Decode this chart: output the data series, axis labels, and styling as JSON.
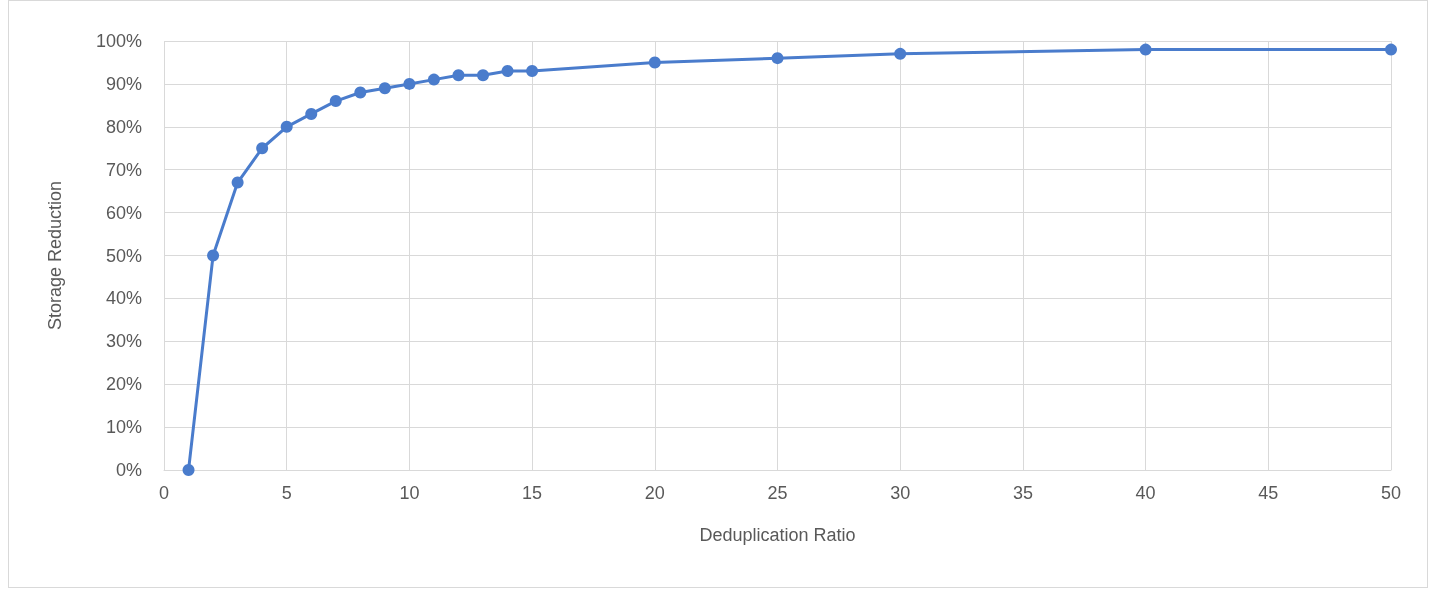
{
  "chart_data": {
    "type": "line",
    "xlabel": "Deduplication Ratio",
    "ylabel": "Storage Reduction",
    "x": [
      1,
      2,
      3,
      4,
      5,
      6,
      7,
      8,
      9,
      10,
      11,
      12,
      13,
      14,
      15,
      20,
      25,
      30,
      40,
      50
    ],
    "series": [
      {
        "color": "#4a7ccc",
        "values": [
          0,
          50,
          67,
          75,
          80,
          83,
          86,
          88,
          89,
          90,
          91,
          92,
          92,
          93,
          93,
          95,
          96,
          97,
          98,
          98
        ]
      }
    ],
    "xlim": [
      0,
      50
    ],
    "xticks": [
      0,
      5,
      10,
      15,
      20,
      25,
      30,
      35,
      40,
      45,
      50
    ],
    "ylim": [
      0,
      100
    ],
    "yticks": [
      {
        "value": 0,
        "label": "0%"
      },
      {
        "value": 10,
        "label": "10%"
      },
      {
        "value": 20,
        "label": "20%"
      },
      {
        "value": 30,
        "label": "30%"
      },
      {
        "value": 40,
        "label": "40%"
      },
      {
        "value": 50,
        "label": "50%"
      },
      {
        "value": 60,
        "label": "60%"
      },
      {
        "value": 70,
        "label": "70%"
      },
      {
        "value": 80,
        "label": "80%"
      },
      {
        "value": 90,
        "label": "90%"
      },
      {
        "value": 100,
        "label": "100%"
      }
    ],
    "grid": true,
    "marker": "circle",
    "line_style": "solid"
  }
}
